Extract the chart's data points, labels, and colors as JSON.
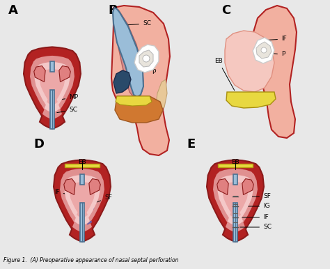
{
  "bg": "#e8e8e8",
  "panel_labels": [
    "A",
    "B",
    "C",
    "D",
    "E"
  ],
  "colors": {
    "dark_red": "#8B1A1A",
    "medium_red": "#B22222",
    "light_red": "#CD5C5C",
    "pink_outer": "#E8909090",
    "pink_inner": "#F4C0C0",
    "skin_pink": "#F0B8B8",
    "orange": "#D4691E",
    "yellow": "#E8D840",
    "blue_dark": "#4A7090",
    "blue_mid": "#6A9AB8",
    "blue_light": "#9ABDD8",
    "white": "#FFFFFF",
    "off_white": "#F0EEE8",
    "purple": "#7060A8",
    "gray_line": "#606060",
    "black": "#000000",
    "nose_fill": "#F2A8A8",
    "nose_outer_line": "#C0392B",
    "turbinate_pink": "#E88888",
    "head_fill": "#F5C0B0"
  }
}
